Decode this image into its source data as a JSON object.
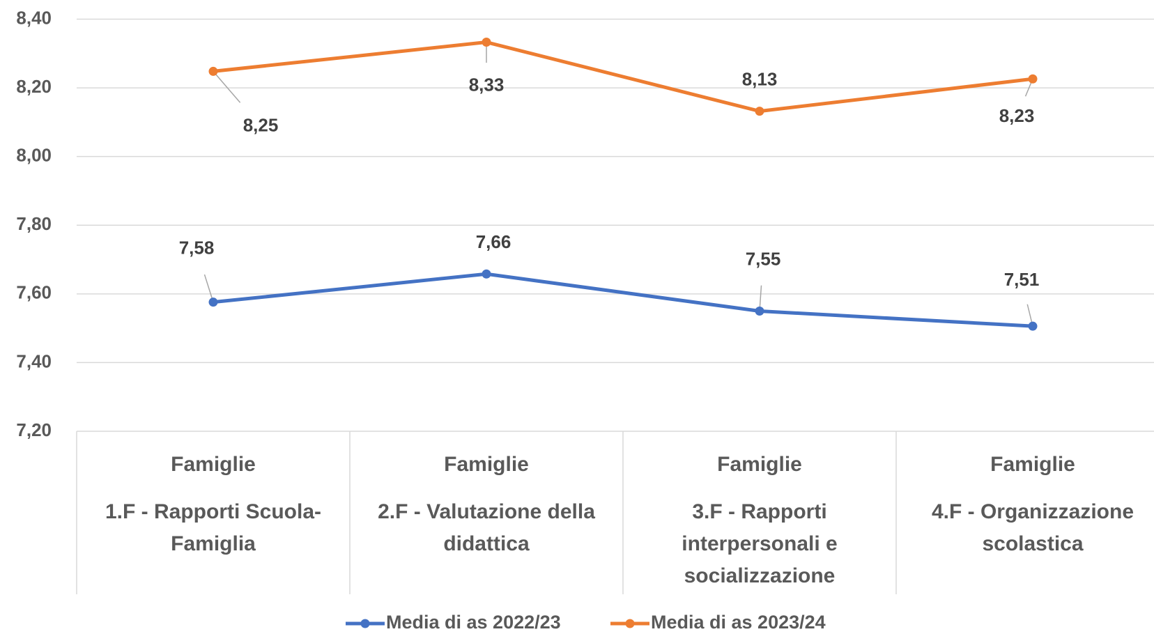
{
  "chart_data": {
    "type": "line",
    "category_group": [
      "Famiglie",
      "Famiglie",
      "Famiglie",
      "Famiglie"
    ],
    "categories": [
      "1.F - Rapporti Scuola-Famiglia",
      "2.F - Valutazione della didattica",
      "3.F - Rapporti interpersonali e socializzazione",
      "4.F - Organizzazione scolastica"
    ],
    "series": [
      {
        "name": "Media di as 2022/23",
        "color": "#4472c4",
        "values": [
          7.576,
          7.658,
          7.55,
          7.506
        ],
        "value_labels": [
          "7,58",
          "7,66",
          "7,55",
          "7,51"
        ]
      },
      {
        "name": "Media di as 2023/24",
        "color": "#ed7d31",
        "values": [
          8.248,
          8.333,
          8.132,
          8.226
        ],
        "value_labels": [
          "8,25",
          "8,33",
          "8,13",
          "8,23"
        ]
      }
    ],
    "ylim": [
      7.2,
      8.4
    ],
    "yticks": [
      {
        "value": 7.2,
        "label": "7,20"
      },
      {
        "value": 7.4,
        "label": "7,40"
      },
      {
        "value": 7.6,
        "label": "7,60"
      },
      {
        "value": 7.8,
        "label": "7,80"
      },
      {
        "value": 8.0,
        "label": "8,00"
      },
      {
        "value": 8.2,
        "label": "8,20"
      },
      {
        "value": 8.4,
        "label": "8,40"
      }
    ],
    "grid": true,
    "legend": "bottom"
  }
}
